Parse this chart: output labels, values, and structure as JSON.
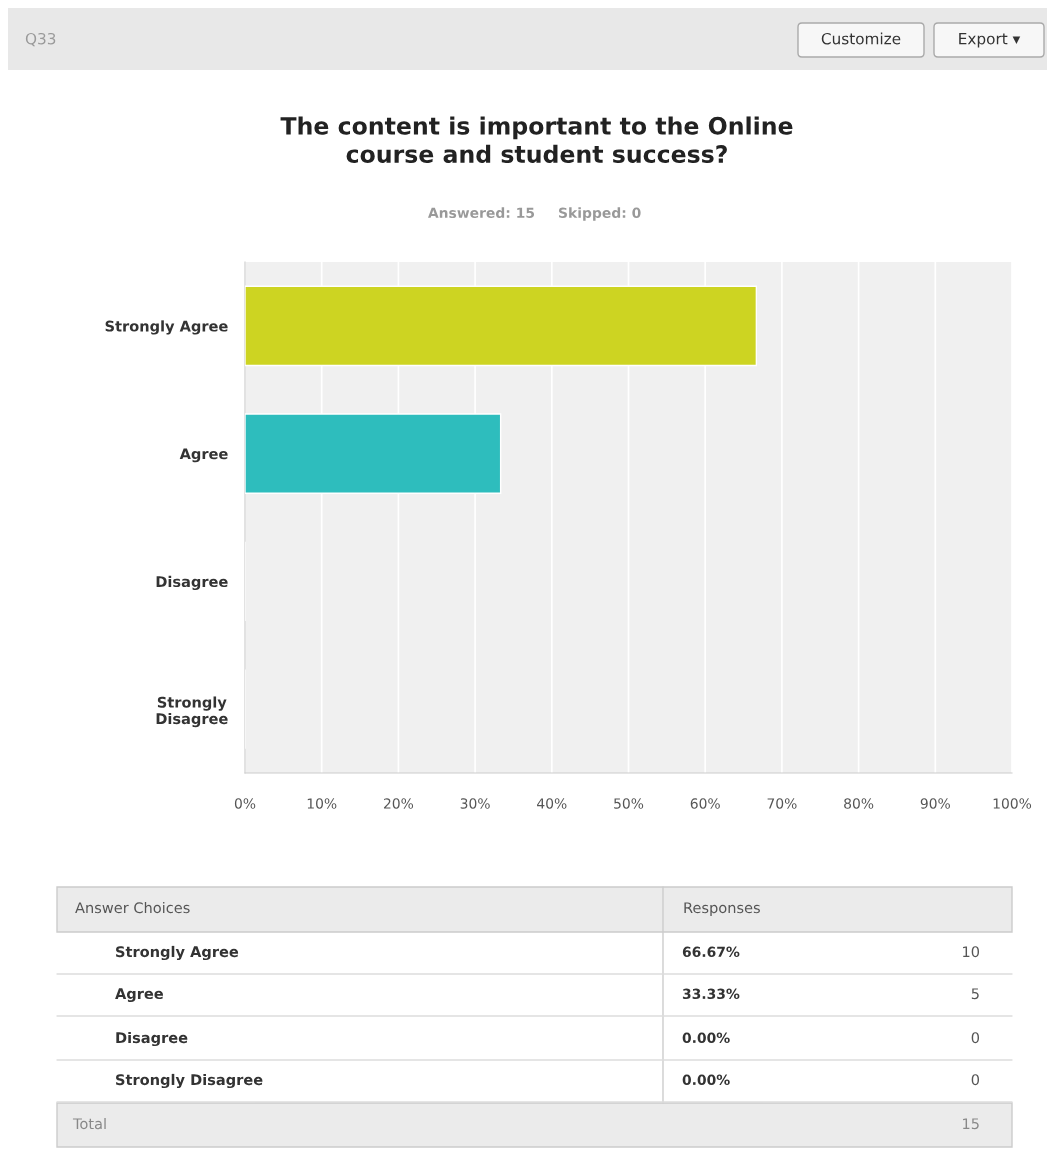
{
  "chart_data": {
    "type": "bar",
    "orientation": "horizontal",
    "title": "The content is important to the Online\ncourse and student success?",
    "categories": [
      "Strongly Agree",
      "Agree",
      "Disagree",
      "Strongly\nDisagree"
    ],
    "values": [
      66.67,
      33.33,
      0,
      0
    ],
    "colors": [
      "#cdd422",
      "#2ebdbd",
      "#9b59b6",
      "#e67e22"
    ],
    "xlim": [
      0,
      100
    ],
    "xticks": [
      {
        "value": 0,
        "label": "0%"
      },
      {
        "value": 10,
        "label": "10%"
      },
      {
        "value": 20,
        "label": "20%"
      },
      {
        "value": 30,
        "label": "30%"
      },
      {
        "value": 40,
        "label": "40%"
      },
      {
        "value": 50,
        "label": "50%"
      },
      {
        "value": 60,
        "label": "60%"
      },
      {
        "value": 70,
        "label": "70%"
      },
      {
        "value": 80,
        "label": "80%"
      },
      {
        "value": 90,
        "label": "90%"
      },
      {
        "value": 100,
        "label": "100%"
      }
    ],
    "grid": "x",
    "legend": false,
    "annotations": [
      "Q33",
      "Customize",
      "Export ▾",
      "Answered: 15",
      "Skipped: 0",
      "Answer Choices",
      "Responses",
      "Total",
      "15",
      "10",
      "5",
      "0",
      "0",
      "66.67%",
      "33.33%",
      "0.00%",
      "0.00%"
    ]
  }
}
